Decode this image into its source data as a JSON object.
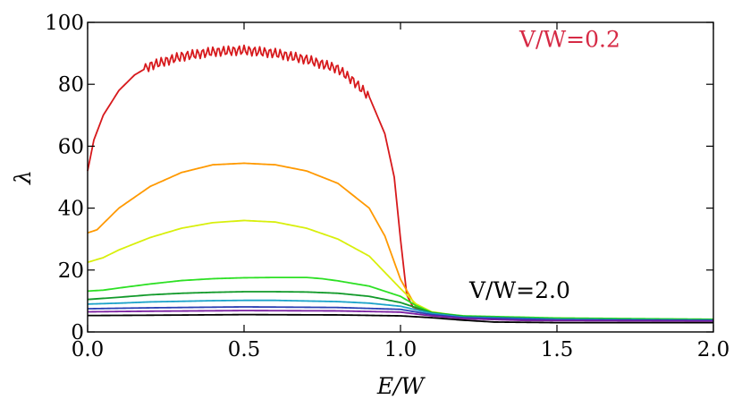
{
  "chart_data": {
    "type": "line",
    "xlabel": "E/W",
    "ylabel": "λ",
    "xlim": [
      0,
      2.0
    ],
    "ylim": [
      0,
      100
    ],
    "xticks": [
      "0.0",
      "0.5",
      "1.0",
      "1.5",
      "2.0"
    ],
    "yticks": [
      "0",
      "20",
      "40",
      "60",
      "80",
      "100"
    ],
    "annotations": [
      {
        "text": "V/W=0.2",
        "x": 1.38,
        "y": 92,
        "color": "#d62a45"
      },
      {
        "text": "V/W=2.0",
        "x": 1.22,
        "y": 11,
        "color": "#000000"
      }
    ],
    "series": [
      {
        "color": "#d7191c",
        "oscillation": 1.6,
        "points": [
          [
            0,
            52
          ],
          [
            0.02,
            62
          ],
          [
            0.05,
            70
          ],
          [
            0.1,
            78
          ],
          [
            0.15,
            83
          ],
          [
            0.2,
            86
          ],
          [
            0.3,
            89
          ],
          [
            0.4,
            90.5
          ],
          [
            0.5,
            91
          ],
          [
            0.6,
            90
          ],
          [
            0.7,
            88
          ],
          [
            0.8,
            85
          ],
          [
            0.85,
            81
          ],
          [
            0.9,
            76
          ],
          [
            0.95,
            64
          ],
          [
            0.98,
            50
          ],
          [
            1.0,
            30
          ],
          [
            1.02,
            12
          ],
          [
            1.04,
            8
          ],
          [
            1.1,
            6
          ],
          [
            1.2,
            5
          ],
          [
            1.4,
            4.5
          ],
          [
            1.6,
            4
          ],
          [
            2.0,
            3.8
          ]
        ]
      },
      {
        "color": "#ff9900",
        "oscillation": 0,
        "points": [
          [
            0,
            32
          ],
          [
            0.03,
            33
          ],
          [
            0.1,
            40
          ],
          [
            0.2,
            47
          ],
          [
            0.3,
            51.5
          ],
          [
            0.4,
            54
          ],
          [
            0.5,
            54.5
          ],
          [
            0.6,
            54
          ],
          [
            0.7,
            52
          ],
          [
            0.8,
            48
          ],
          [
            0.9,
            40
          ],
          [
            0.95,
            31
          ],
          [
            1.0,
            17
          ],
          [
            1.05,
            8
          ],
          [
            1.1,
            6
          ],
          [
            1.2,
            5
          ],
          [
            1.5,
            4.4
          ],
          [
            2.0,
            4
          ]
        ]
      },
      {
        "color": "#d8ef0c",
        "oscillation": 0,
        "points": [
          [
            0,
            22.5
          ],
          [
            0.05,
            24
          ],
          [
            0.1,
            26.5
          ],
          [
            0.2,
            30.5
          ],
          [
            0.3,
            33.5
          ],
          [
            0.4,
            35.3
          ],
          [
            0.5,
            36
          ],
          [
            0.6,
            35.5
          ],
          [
            0.7,
            33.5
          ],
          [
            0.8,
            30
          ],
          [
            0.9,
            24.5
          ],
          [
            1.0,
            14
          ],
          [
            1.05,
            9
          ],
          [
            1.1,
            6.5
          ],
          [
            1.2,
            5
          ],
          [
            1.5,
            4.4
          ],
          [
            2.0,
            4
          ]
        ]
      },
      {
        "color": "#2de024",
        "oscillation": 0,
        "points": [
          [
            0,
            13.2
          ],
          [
            0.05,
            13.5
          ],
          [
            0.1,
            14.2
          ],
          [
            0.2,
            15.5
          ],
          [
            0.3,
            16.6
          ],
          [
            0.4,
            17.2
          ],
          [
            0.5,
            17.5
          ],
          [
            0.6,
            17.6
          ],
          [
            0.7,
            17.6
          ],
          [
            0.75,
            17.2
          ],
          [
            0.8,
            16.5
          ],
          [
            0.9,
            14.8
          ],
          [
            1.0,
            11.5
          ],
          [
            1.05,
            8.5
          ],
          [
            1.1,
            6.3
          ],
          [
            1.2,
            5.2
          ],
          [
            1.5,
            4.5
          ],
          [
            2.0,
            4.1
          ]
        ]
      },
      {
        "color": "#129a2a",
        "oscillation": 0,
        "points": [
          [
            0,
            10.5
          ],
          [
            0.1,
            11.2
          ],
          [
            0.2,
            12
          ],
          [
            0.3,
            12.5
          ],
          [
            0.4,
            12.8
          ],
          [
            0.5,
            13
          ],
          [
            0.6,
            13
          ],
          [
            0.7,
            12.9
          ],
          [
            0.8,
            12.5
          ],
          [
            0.9,
            11.5
          ],
          [
            1.0,
            9.5
          ],
          [
            1.1,
            6.2
          ],
          [
            1.2,
            5
          ],
          [
            1.5,
            4.2
          ],
          [
            2.0,
            3.9
          ]
        ]
      },
      {
        "color": "#1ca3c9",
        "oscillation": 0,
        "points": [
          [
            0,
            9
          ],
          [
            0.1,
            9.3
          ],
          [
            0.2,
            9.7
          ],
          [
            0.4,
            10.1
          ],
          [
            0.5,
            10.2
          ],
          [
            0.6,
            10.2
          ],
          [
            0.8,
            9.8
          ],
          [
            0.9,
            9.3
          ],
          [
            1.0,
            8.3
          ],
          [
            1.1,
            6
          ],
          [
            1.2,
            4.8
          ],
          [
            1.5,
            4.1
          ],
          [
            2.0,
            3.8
          ]
        ]
      },
      {
        "color": "#2a3fb3",
        "oscillation": 0,
        "points": [
          [
            0,
            7.5
          ],
          [
            0.2,
            7.8
          ],
          [
            0.5,
            8.1
          ],
          [
            0.8,
            7.9
          ],
          [
            1.0,
            7.3
          ],
          [
            1.1,
            5.6
          ],
          [
            1.2,
            4.6
          ],
          [
            1.5,
            3.9
          ],
          [
            2.0,
            3.7
          ]
        ]
      },
      {
        "color": "#7b1ea0",
        "oscillation": 0,
        "points": [
          [
            0,
            6.5
          ],
          [
            0.2,
            6.7
          ],
          [
            0.5,
            6.9
          ],
          [
            0.8,
            6.8
          ],
          [
            1.0,
            6.4
          ],
          [
            1.1,
            5.2
          ],
          [
            1.2,
            4.3
          ],
          [
            1.4,
            3.7
          ],
          [
            2.0,
            3.5
          ]
        ]
      },
      {
        "color": "#000000",
        "oscillation": 0,
        "points": [
          [
            0,
            5.3
          ],
          [
            0.2,
            5.4
          ],
          [
            0.5,
            5.6
          ],
          [
            0.8,
            5.5
          ],
          [
            1.0,
            5.2
          ],
          [
            1.1,
            4.6
          ],
          [
            1.2,
            3.8
          ],
          [
            1.3,
            3.2
          ],
          [
            1.5,
            3
          ],
          [
            2.0,
            3
          ]
        ]
      }
    ]
  }
}
